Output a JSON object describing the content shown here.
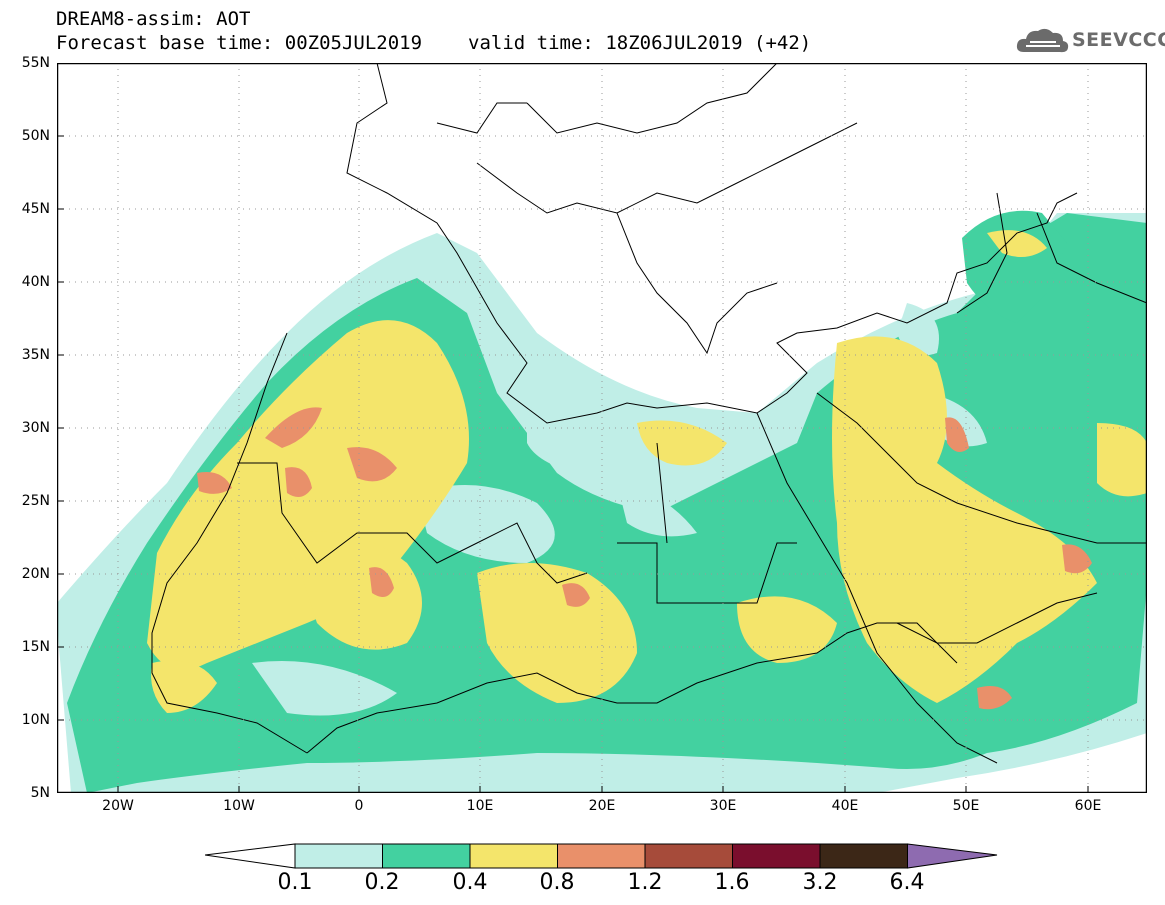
{
  "header": {
    "title_line1": "DREAM8-assim: AOT",
    "forecast_base": "Forecast base time: 00Z05JUL2019",
    "valid_time": "valid time: 18Z06JUL2019 (+42)"
  },
  "logo": {
    "text": "SEEVCCC",
    "icon": "cloud-icon"
  },
  "axes": {
    "lat_labels": [
      "55N",
      "50N",
      "45N",
      "40N",
      "35N",
      "30N",
      "25N",
      "20N",
      "15N",
      "10N",
      "5N"
    ],
    "lon_labels": [
      "20W",
      "10W",
      "0",
      "10E",
      "20E",
      "30E",
      "40E",
      "50E",
      "60E"
    ]
  },
  "colorbar": {
    "labels": [
      "0.1",
      "0.2",
      "0.4",
      "0.8",
      "1.2",
      "1.6",
      "3.2",
      "6.4"
    ],
    "colors": {
      "under": "#ffffff",
      "c1": "#c0eee7",
      "c2": "#43d1a0",
      "c3": "#f4e56b",
      "c4": "#e9906a",
      "c5": "#a64b3a",
      "c6": "#7a0e2d",
      "c7": "#3c2717",
      "over": "#8e6bb0"
    }
  }
}
